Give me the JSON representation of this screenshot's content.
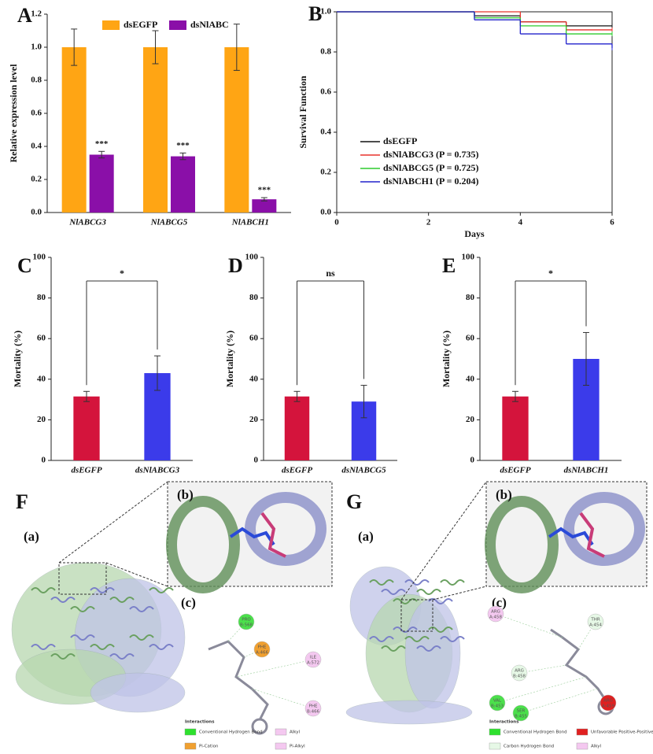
{
  "chart_data": [
    {
      "type": "bar",
      "label": "A",
      "ylabel": "Relative expression level",
      "categories": [
        "NlABCG3",
        "NlABCG5",
        "NlABCH1"
      ],
      "series": [
        {
          "name": "dsEGFP",
          "color": "#ffa514",
          "values": [
            1.0,
            1.0,
            1.0
          ],
          "errors": [
            0.11,
            0.1,
            0.14
          ]
        },
        {
          "name": "dsNlABC",
          "color": "#8a0fa8",
          "values": [
            0.35,
            0.34,
            0.08
          ],
          "errors": [
            0.02,
            0.02,
            0.01
          ]
        }
      ],
      "significance": [
        "***",
        "***",
        "***"
      ],
      "ylim": [
        0,
        1.2
      ],
      "yticks": [
        {
          "value": 0,
          "label": "0.0"
        },
        0.2,
        0.4,
        0.6,
        0.8,
        {
          "value": 1,
          "label": "1.0"
        },
        1.2
      ]
    },
    {
      "type": "line",
      "step": true,
      "label": "B",
      "ylabel": "Survival Function",
      "xlabel": "Days",
      "x": [
        0,
        3,
        4,
        5,
        6
      ],
      "series": [
        {
          "name": "dsEGFP",
          "color": "#111111",
          "values": [
            1,
            0.98,
            0.95,
            0.93,
            0.93
          ]
        },
        {
          "name": "dsNlABCG3 (P = 0.735)",
          "color": "#e8322c",
          "values": [
            1,
            1,
            0.95,
            0.91,
            0.91
          ]
        },
        {
          "name": "dsNlABCG5 (P = 0.725)",
          "color": "#2ecc2e",
          "values": [
            1,
            0.97,
            0.93,
            0.89,
            0.89
          ]
        },
        {
          "name": "dsNlABCH1 (P = 0.204)",
          "color": "#2222cc",
          "values": [
            1,
            0.96,
            0.89,
            0.84,
            0.82
          ]
        }
      ],
      "xlim": [
        0,
        6
      ],
      "xticks": [
        0,
        2,
        4,
        6
      ],
      "ylim": [
        0,
        1
      ],
      "yticks": [
        {
          "value": 0,
          "label": "0.0"
        },
        0.2,
        0.4,
        0.6,
        0.8,
        {
          "value": 1,
          "label": "1.0"
        }
      ]
    },
    {
      "type": "bar",
      "label": "C",
      "ylabel": "Mortality (%)",
      "categories": [
        "dsEGFP",
        "dsNlABCG3"
      ],
      "values": [
        31.5,
        43
      ],
      "errors": [
        2.5,
        8.5
      ],
      "colors": [
        "#d4143c",
        "#3b3bea"
      ],
      "significance": "*",
      "ylim": [
        0,
        100
      ],
      "yticks": [
        0,
        20,
        40,
        60,
        80,
        100
      ]
    },
    {
      "type": "bar",
      "label": "D",
      "ylabel": "Mortality (%)",
      "categories": [
        "dsEGFP",
        "dsNlABCG5"
      ],
      "values": [
        31.5,
        29
      ],
      "errors": [
        2.5,
        8
      ],
      "colors": [
        "#d4143c",
        "#3b3bea"
      ],
      "significance": "ns",
      "ylim": [
        0,
        100
      ],
      "yticks": [
        0,
        20,
        40,
        60,
        80,
        100
      ]
    },
    {
      "type": "bar",
      "label": "E",
      "ylabel": "Mortality (%)",
      "categories": [
        "dsEGFP",
        "dsNlABCH1"
      ],
      "values": [
        31.5,
        50
      ],
      "errors": [
        2.5,
        13
      ],
      "colors": [
        "#d4143c",
        "#3b3bea"
      ],
      "significance": "*",
      "ylim": [
        0,
        100
      ],
      "yticks": [
        0,
        20,
        40,
        60,
        80,
        100
      ]
    }
  ],
  "panels": [
    {
      "label": "F",
      "subpanels": [
        "(a)",
        "(b)",
        "(c)"
      ],
      "residues": [
        {
          "name": "PRO",
          "id": "B:568",
          "color": "#4be04b"
        },
        {
          "name": "PHE",
          "id": "A:466",
          "color": "#f0a030"
        },
        {
          "name": "ILE",
          "id": "A:572",
          "color": "#f4c8f0"
        },
        {
          "name": "PHE",
          "id": "B:466",
          "color": "#f4c8f0"
        }
      ],
      "legend_title": "Interactions",
      "legend": [
        {
          "name": "Conventional Hydrogen Bond",
          "color": "#2ee02e"
        },
        {
          "name": "Pi-Cation",
          "color": "#f0a030"
        },
        {
          "name": "Alkyl",
          "color": "#f4c8f0"
        },
        {
          "name": "Pi-Alkyl",
          "color": "#f4c8f0"
        }
      ]
    },
    {
      "label": "G",
      "subpanels": [
        "(a)",
        "(b)",
        "(c)"
      ],
      "residues": [
        {
          "name": "ARG",
          "id": "A:458",
          "color": "#f4c8f0"
        },
        {
          "name": "THR",
          "id": "A:454",
          "color": "#e6f8e6"
        },
        {
          "name": "ARG",
          "id": "B:458",
          "color": "#e6f8e6"
        },
        {
          "name": "VAL",
          "id": "B:453",
          "color": "#4be04b"
        },
        {
          "name": "SER",
          "id": "B:455",
          "color": "#4be04b"
        },
        {
          "name": "ARG",
          "id": "A:459",
          "color": "#e02020"
        }
      ],
      "legend_title": "Interactions",
      "legend": [
        {
          "name": "Conventional Hydrogen Bond",
          "color": "#2ee02e"
        },
        {
          "name": "Unfavorable Positive-Positive",
          "color": "#e02020"
        },
        {
          "name": "Carbon Hydrogen Bond",
          "color": "#e6f8e6"
        },
        {
          "name": "Alkyl",
          "color": "#f4c8f0"
        }
      ]
    }
  ]
}
